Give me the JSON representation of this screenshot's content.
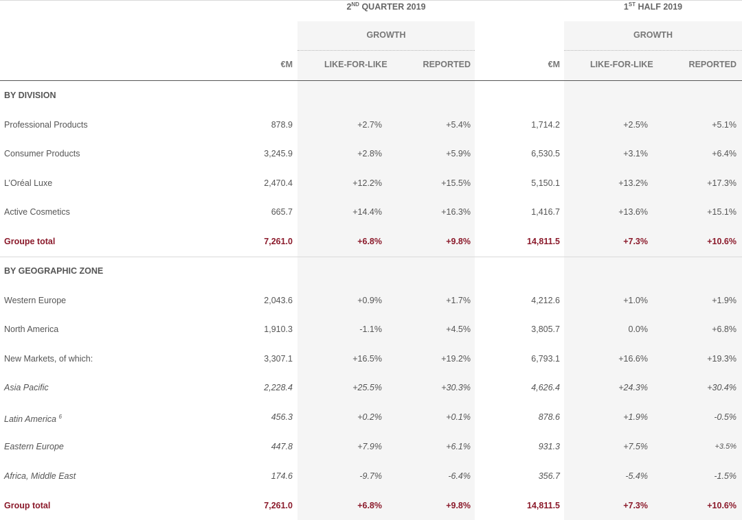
{
  "header": {
    "q2_prefix": "2",
    "q2_sup": "ND",
    "q2_rest": " QUARTER 2019",
    "h1_prefix": "1",
    "h1_sup": "ST",
    "h1_rest": " HALF 2019",
    "growth_q2": "GROWTH",
    "growth_h1": "GROWTH",
    "col_em_q2": "€M",
    "col_lfl_q2": "LIKE-FOR-LIKE",
    "col_rep_q2": "REPORTED",
    "col_em_h1": "€M",
    "col_lfl_h1": "LIKE-FOR-LIKE",
    "col_rep_h1": "REPORTED"
  },
  "sections": {
    "division_title": "BY DIVISION",
    "zone_title": "BY GEOGRAPHIC ZONE"
  },
  "rows": [
    {
      "label": "Professional Products",
      "q_em": "878.9",
      "q_lfl": "+2.7%",
      "q_rep": "+5.4%",
      "h_em": "1,714.2",
      "h_lfl": "+2.5%",
      "h_rep": "+5.1%"
    },
    {
      "label": "Consumer Products",
      "q_em": "3,245.9",
      "q_lfl": "+2.8%",
      "q_rep": "+5.9%",
      "h_em": "6,530.5",
      "h_lfl": "+3.1%",
      "h_rep": "+6.4%"
    },
    {
      "label": "L’Oréal Luxe",
      "q_em": "2,470.4",
      "q_lfl": "+12.2%",
      "q_rep": "+15.5%",
      "h_em": "5,150.1",
      "h_lfl": "+13.2%",
      "h_rep": "+17.3%"
    },
    {
      "label": "Active Cosmetics",
      "q_em": "665.7",
      "q_lfl": "+14.4%",
      "q_rep": "+16.3%",
      "h_em": "1,416.7",
      "h_lfl": "+13.6%",
      "h_rep": "+15.1%"
    },
    {
      "label": "Groupe total",
      "q_em": "7,261.0",
      "q_lfl": "+6.8%",
      "q_rep": "+9.8%",
      "h_em": "14,811.5",
      "h_lfl": "+7.3%",
      "h_rep": "+10.6%"
    },
    {
      "label": "Western Europe",
      "q_em": "2,043.6",
      "q_lfl": "+0.9%",
      "q_rep": "+1.7%",
      "h_em": "4,212.6",
      "h_lfl": "+1.0%",
      "h_rep": "+1.9%"
    },
    {
      "label": "North America",
      "q_em": "1,910.3",
      "q_lfl": "-1.1%",
      "q_rep": "+4.5%",
      "h_em": "3,805.7",
      "h_lfl": "0.0%",
      "h_rep": "+6.8%"
    },
    {
      "label": "New Markets, of which:",
      "q_em": "3,307.1",
      "q_lfl": "+16.5%",
      "q_rep": "+19.2%",
      "h_em": "6,793.1",
      "h_lfl": "+16.6%",
      "h_rep": "+19.3%"
    },
    {
      "label": "Asia Pacific",
      "q_em": "2,228.4",
      "q_lfl": "+25.5%",
      "q_rep": "+30.3%",
      "h_em": "4,626.4",
      "h_lfl": "+24.3%",
      "h_rep": "+30.4%"
    },
    {
      "label": "Latin America",
      "sup": "6",
      "q_em": "456.3",
      "q_lfl": "+0.2%",
      "q_rep": "+0.1%",
      "h_em": "878.6",
      "h_lfl": "+1.9%",
      "h_rep": "-0.5%"
    },
    {
      "label": "Eastern Europe",
      "q_em": "447.8",
      "q_lfl": "+7.9%",
      "q_rep": "+6.1%",
      "h_em": "931.3",
      "h_lfl": "+7.5%",
      "h_rep": "+3.5%"
    },
    {
      "label": "Africa, Middle East",
      "q_em": "174.6",
      "q_lfl": "-9.7%",
      "q_rep": "-6.4%",
      "h_em": "356.7",
      "h_lfl": "-5.4%",
      "h_rep": "-1.5%"
    },
    {
      "label": "Group total",
      "q_em": "7,261.0",
      "q_lfl": "+6.8%",
      "q_rep": "+9.8%",
      "h_em": "14,811.5",
      "h_lfl": "+7.3%",
      "h_rep": "+10.6%"
    }
  ],
  "colors": {
    "total_text": "#8b1a2b",
    "body_text": "#555555",
    "shaded_column": "#f5f5f5"
  }
}
